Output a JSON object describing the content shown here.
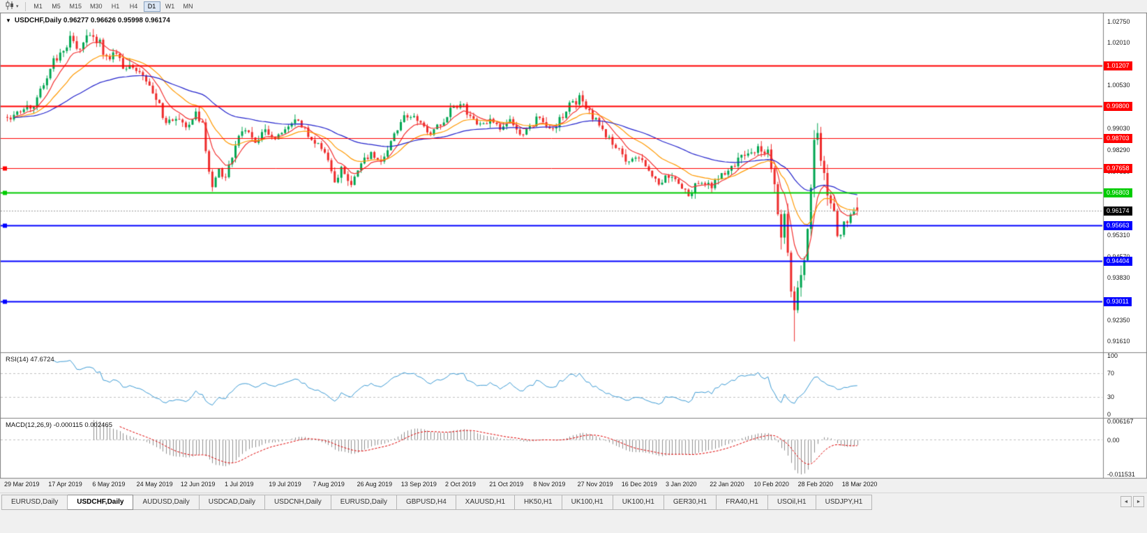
{
  "window": {
    "background": "#f0f0f0"
  },
  "toolbar": {
    "chart_type_icon": "candlestick-chart-icon",
    "dropdown_icon": "chevron-down-icon",
    "timeframes": [
      "M1",
      "M5",
      "M15",
      "M30",
      "H1",
      "H4",
      "D1",
      "W1",
      "MN"
    ],
    "active_timeframe": "D1"
  },
  "chart": {
    "title": "USDCHF,Daily 0.96277 0.96626 0.95998 0.96174",
    "symbol": "USDCHF",
    "period": "Daily",
    "open": "0.96277",
    "high": "0.96626",
    "low": "0.95998",
    "close": "0.96174"
  },
  "indicators": {
    "rsi": {
      "label": "RSI(14) 47.6724",
      "name": "RSI",
      "period": 14,
      "value": "47.6724",
      "line_color": "#3C9BD5",
      "level_lines": [
        70,
        30
      ],
      "axis_ticks": [
        {
          "text": "100",
          "value": 100
        },
        {
          "text": "70",
          "value": 70
        },
        {
          "text": "30",
          "value": 30
        },
        {
          "text": "0",
          "value": 0
        }
      ]
    },
    "macd": {
      "label": "MACD(12,26,9) -0.000115 0.002465",
      "name": "MACD",
      "params": [
        12,
        26,
        9
      ],
      "main_value": "-0.000115",
      "signal_value": "0.002465",
      "histogram_color": "#909090",
      "signal_color": "#E00000",
      "axis_ticks": [
        {
          "text": "0.006167",
          "value": 0.006167
        },
        {
          "text": "0.00",
          "value": 0
        },
        {
          "text": "-0.011531",
          "value": -0.011531
        }
      ]
    }
  },
  "tabs": {
    "items": [
      "EURUSD,Daily",
      "USDCHF,Daily",
      "AUDUSD,Daily",
      "USDCAD,Daily",
      "USDCNH,Daily",
      "EURUSD,Daily",
      "GBPUSD,H4",
      "XAUUSD,H1",
      "HK50,H1",
      "UK100,H1",
      "UK100,H1",
      "GER30,H1",
      "FRA40,H1",
      "USOil,H1",
      "USDJPY,H1"
    ],
    "active_index": 1,
    "scroll_left_icon": "◄",
    "scroll_right_icon": "►"
  },
  "chart_data": {
    "type": "candlestick",
    "symbol": "USDCHF",
    "timeframe": "Daily",
    "ylim": [
      0.9134,
      1.0302
    ],
    "grid": false,
    "up_color": "#00A651",
    "down_color": "#EE2B2B",
    "price_axis_ticks": [
      {
        "text": "1.02750",
        "value": 1.0275
      },
      {
        "text": "1.02010",
        "value": 1.0201
      },
      {
        "text": "1.00530",
        "value": 1.0053
      },
      {
        "text": "0.99030",
        "value": 0.9903
      },
      {
        "text": "0.98290",
        "value": 0.9829
      },
      {
        "text": "0.97530",
        "value": 0.9753
      },
      {
        "text": "0.95310",
        "value": 0.9531
      },
      {
        "text": "0.94570",
        "value": 0.9457
      },
      {
        "text": "0.93830",
        "value": 0.9383
      },
      {
        "text": "0.92350",
        "value": 0.9235
      },
      {
        "text": "0.91610",
        "value": 0.9161
      }
    ],
    "date_axis_ticks": [
      "29 Mar 2019",
      "17 Apr 2019",
      "6 May 2019",
      "24 May 2019",
      "12 Jun 2019",
      "1 Jul 2019",
      "19 Jul 2019",
      "7 Aug 2019",
      "26 Aug 2019",
      "13 Sep 2019",
      "2 Oct 2019",
      "21 Oct 2019",
      "8 Nov 2019",
      "27 Nov 2019",
      "16 Dec 2019",
      "3 Jan 2020",
      "22 Jan 2020",
      "10 Feb 2020",
      "28 Feb 2020",
      "18 Mar 2020"
    ],
    "current_price": {
      "text": "0.96174",
      "value": 0.96174,
      "tag_bg": "#000000"
    },
    "horizontal_lines": [
      {
        "label": "1.01207",
        "value": 1.01207,
        "color": "#FF0000",
        "width": 2,
        "handle": false
      },
      {
        "label": "0.99800",
        "value": 0.998,
        "color": "#FF0000",
        "width": 2,
        "handle": false
      },
      {
        "label": "0.98703",
        "value": 0.98703,
        "color": "#FF0000",
        "width": 1,
        "handle": false
      },
      {
        "label": "0.97658",
        "value": 0.97658,
        "color": "#FF0000",
        "width": 1,
        "handle": true
      },
      {
        "label": "0.96803",
        "value": 0.96803,
        "color": "#00CC00",
        "width": 2,
        "handle": true
      },
      {
        "label": "0.95663",
        "value": 0.95663,
        "color": "#0000FF",
        "width": 2,
        "handle": true
      },
      {
        "label": "0.94404",
        "value": 0.94404,
        "color": "#0000FF",
        "width": 2,
        "handle": false
      },
      {
        "label": "0.93011",
        "value": 0.93011,
        "color": "#0000FF",
        "width": 2,
        "handle": true
      }
    ],
    "moving_averages": [
      {
        "period": 8,
        "color": "#F43333"
      },
      {
        "period": 20,
        "color": "#FF9900"
      },
      {
        "period": 55,
        "color": "#2222CC"
      }
    ],
    "rsi_period": 14,
    "macd_params": [
      12,
      26,
      9
    ],
    "candle_count": 258,
    "noise_seed": 11,
    "base_volatility": 0.0026,
    "vol_regions": [
      {
        "from": 12,
        "to": 45,
        "mult": 1.25
      },
      {
        "from": 231,
        "to": 253,
        "mult": 2.5
      }
    ],
    "trend_keyframes": [
      [
        0,
        0.994
      ],
      [
        4,
        0.9962
      ],
      [
        8,
        0.9985
      ],
      [
        12,
        1.0085
      ],
      [
        16,
        1.0175
      ],
      [
        19,
        1.021
      ],
      [
        22,
        1.019
      ],
      [
        25,
        1.0225
      ],
      [
        28,
        1.02
      ],
      [
        30,
        1.015
      ],
      [
        33,
        1.0165
      ],
      [
        36,
        1.01
      ],
      [
        39,
        1.0118
      ],
      [
        42,
        1.0068
      ],
      [
        45,
        1.0015
      ],
      [
        48,
        0.9915
      ],
      [
        51,
        0.995
      ],
      [
        54,
        0.99
      ],
      [
        57,
        0.996
      ],
      [
        59,
        0.9925
      ],
      [
        61,
        0.974
      ],
      [
        62,
        0.9705
      ],
      [
        64,
        0.976
      ],
      [
        66,
        0.973
      ],
      [
        69,
        0.9855
      ],
      [
        72,
        0.99
      ],
      [
        75,
        0.986
      ],
      [
        78,
        0.9898
      ],
      [
        81,
        0.9862
      ],
      [
        85,
        0.9915
      ],
      [
        88,
        0.9938
      ],
      [
        91,
        0.9878
      ],
      [
        94,
        0.9855
      ],
      [
        97,
        0.9788
      ],
      [
        99,
        0.9722
      ],
      [
        101,
        0.9762
      ],
      [
        104,
        0.9718
      ],
      [
        107,
        0.9782
      ],
      [
        110,
        0.9818
      ],
      [
        113,
        0.9792
      ],
      [
        116,
        0.985
      ],
      [
        119,
        0.992
      ],
      [
        122,
        0.9958
      ],
      [
        125,
        0.9912
      ],
      [
        128,
        0.9882
      ],
      [
        131,
        0.992
      ],
      [
        134,
        0.9962
      ],
      [
        137,
        0.9995
      ],
      [
        140,
        0.995
      ],
      [
        143,
        0.9905
      ],
      [
        146,
        0.994
      ],
      [
        149,
        0.9898
      ],
      [
        152,
        0.9935
      ],
      [
        155,
        0.9878
      ],
      [
        158,
        0.9915
      ],
      [
        161,
        0.994
      ],
      [
        164,
        0.9895
      ],
      [
        167,
        0.993
      ],
      [
        170,
        0.9988
      ],
      [
        173,
        1.0002
      ],
      [
        176,
        0.9962
      ],
      [
        179,
        0.9908
      ],
      [
        182,
        0.9868
      ],
      [
        185,
        0.9828
      ],
      [
        188,
        0.9778
      ],
      [
        191,
        0.9808
      ],
      [
        194,
        0.9752
      ],
      [
        197,
        0.9712
      ],
      [
        200,
        0.9742
      ],
      [
        203,
        0.9702
      ],
      [
        206,
        0.9678
      ],
      [
        209,
        0.9712
      ],
      [
        212,
        0.9698
      ],
      [
        215,
        0.9728
      ],
      [
        218,
        0.9752
      ],
      [
        221,
        0.9788
      ],
      [
        224,
        0.9822
      ],
      [
        227,
        0.9838
      ],
      [
        229,
        0.9808
      ],
      [
        230,
        0.983
      ],
      [
        231,
        0.9772
      ],
      [
        232,
        0.9688
      ],
      [
        233,
        0.9608
      ],
      [
        234,
        0.9555
      ],
      [
        235,
        0.958
      ],
      [
        236,
        0.9462
      ],
      [
        237,
        0.9345
      ],
      [
        238,
        0.9242
      ],
      [
        239,
        0.9328
      ],
      [
        240,
        0.9405
      ],
      [
        241,
        0.9455
      ],
      [
        242,
        0.9552
      ],
      [
        243,
        0.97
      ],
      [
        244,
        0.984
      ],
      [
        245,
        0.9875
      ],
      [
        246,
        0.9818
      ],
      [
        248,
        0.97
      ],
      [
        250,
        0.9598
      ],
      [
        251,
        0.9532
      ],
      [
        253,
        0.956
      ],
      [
        255,
        0.9602
      ],
      [
        257,
        0.96174
      ]
    ],
    "wick_overrides": [
      {
        "i": 238,
        "low": 0.9161
      },
      {
        "i": 245,
        "high": 0.99
      },
      {
        "i": 25,
        "high": 1.0235
      }
    ],
    "last_bar": {
      "open": 0.96277,
      "high": 0.96626,
      "low": 0.95998,
      "close": 0.96174
    }
  }
}
